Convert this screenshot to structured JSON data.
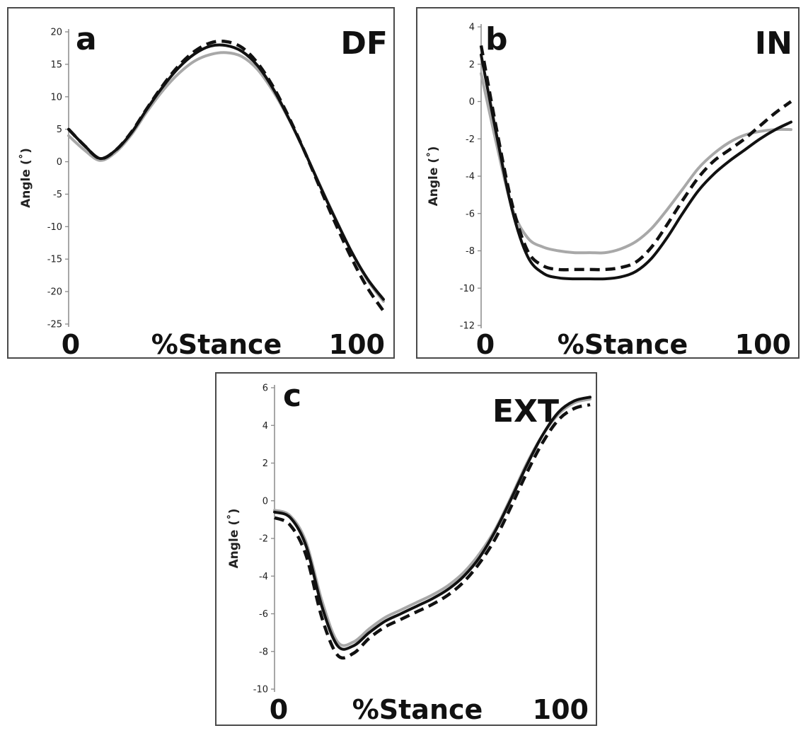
{
  "chart_data": [
    {
      "type": "line",
      "panel_letter": "a",
      "corner_label": "DF",
      "ylabel": "Angle (˚)",
      "xlabel": "%Stance",
      "x_start_label": "0",
      "x_end_label": "100",
      "ylim": [
        -25,
        20
      ],
      "yticks": [
        "20",
        "15",
        "10",
        "5",
        "0",
        "-5",
        "-10",
        "-15",
        "-20",
        "-25"
      ],
      "x": [
        0,
        5,
        10,
        15,
        20,
        25,
        30,
        35,
        40,
        45,
        50,
        55,
        60,
        65,
        70,
        75,
        80,
        85,
        90,
        95,
        100
      ],
      "series": [
        {
          "style": "solid-gray",
          "values": [
            4.0,
            1.8,
            0.2,
            1.5,
            4.2,
            7.8,
            11.0,
            13.6,
            15.5,
            16.5,
            16.8,
            16.2,
            14.2,
            10.8,
            6.5,
            1.5,
            -3.8,
            -9.0,
            -14.0,
            -18.3,
            -21.5
          ]
        },
        {
          "style": "dashed-black",
          "values": [
            5.0,
            2.5,
            0.5,
            1.8,
            4.6,
            8.3,
            11.8,
            14.8,
            17.0,
            18.3,
            18.5,
            17.6,
            15.2,
            11.5,
            6.8,
            1.5,
            -4.2,
            -9.8,
            -15.0,
            -19.5,
            -23.0
          ]
        },
        {
          "style": "solid-black",
          "values": [
            5.0,
            2.5,
            0.5,
            1.8,
            4.5,
            8.2,
            11.6,
            14.5,
            16.6,
            17.8,
            17.9,
            17.0,
            14.8,
            11.2,
            6.6,
            1.5,
            -3.9,
            -9.1,
            -14.0,
            -18.1,
            -21.2
          ]
        }
      ]
    },
    {
      "type": "line",
      "panel_letter": "b",
      "corner_label": "IN",
      "ylabel": "Angle (˚)",
      "xlabel": "%Stance",
      "x_start_label": "0",
      "x_end_label": "100",
      "ylim": [
        -12,
        4
      ],
      "yticks": [
        "4",
        "2",
        "0",
        "-2",
        "-4",
        "-6",
        "-8",
        "-10",
        "-12"
      ],
      "x": [
        0,
        5,
        10,
        15,
        20,
        25,
        30,
        35,
        40,
        45,
        50,
        55,
        60,
        65,
        70,
        75,
        80,
        85,
        90,
        95,
        100
      ],
      "series": [
        {
          "style": "solid-gray",
          "values": [
            1.5,
            -2.3,
            -5.7,
            -7.3,
            -7.8,
            -8.0,
            -8.1,
            -8.1,
            -8.1,
            -7.9,
            -7.5,
            -6.8,
            -5.8,
            -4.7,
            -3.6,
            -2.8,
            -2.2,
            -1.8,
            -1.6,
            -1.5,
            -1.5
          ]
        },
        {
          "style": "dashed-black",
          "values": [
            3.0,
            -1.5,
            -5.5,
            -8.0,
            -8.8,
            -9.0,
            -9.0,
            -9.0,
            -9.0,
            -8.9,
            -8.6,
            -7.8,
            -6.6,
            -5.3,
            -4.1,
            -3.2,
            -2.6,
            -2.0,
            -1.3,
            -0.6,
            0.0
          ]
        },
        {
          "style": "solid-black",
          "values": [
            2.5,
            -1.8,
            -5.8,
            -8.3,
            -9.2,
            -9.45,
            -9.5,
            -9.5,
            -9.5,
            -9.4,
            -9.1,
            -8.4,
            -7.3,
            -6.0,
            -4.8,
            -3.9,
            -3.2,
            -2.6,
            -2.0,
            -1.5,
            -1.1
          ]
        }
      ]
    },
    {
      "type": "line",
      "panel_letter": "c",
      "corner_label": "EXT",
      "ylabel": "Angle (˚)",
      "xlabel": "%Stance",
      "x_start_label": "0",
      "x_end_label": "100",
      "ylim": [
        -10,
        6
      ],
      "yticks": [
        "6",
        "4",
        "2",
        "0",
        "-2",
        "-4",
        "-6",
        "-8",
        "-10"
      ],
      "x": [
        0,
        5,
        10,
        15,
        20,
        25,
        30,
        35,
        40,
        45,
        50,
        55,
        60,
        65,
        70,
        75,
        80,
        85,
        90,
        95,
        100
      ],
      "series": [
        {
          "style": "solid-gray",
          "values": [
            -0.5,
            -0.8,
            -2.2,
            -5.3,
            -7.5,
            -7.5,
            -6.8,
            -6.2,
            -5.8,
            -5.4,
            -5.0,
            -4.5,
            -3.8,
            -2.8,
            -1.5,
            0.2,
            2.0,
            3.5,
            4.6,
            5.2,
            5.4
          ]
        },
        {
          "style": "dashed-black",
          "values": [
            -0.9,
            -1.3,
            -2.9,
            -6.2,
            -8.2,
            -8.1,
            -7.3,
            -6.7,
            -6.3,
            -5.9,
            -5.5,
            -5.0,
            -4.3,
            -3.3,
            -2.0,
            -0.3,
            1.5,
            3.1,
            4.3,
            4.9,
            5.1
          ]
        },
        {
          "style": "solid-black",
          "values": [
            -0.6,
            -0.9,
            -2.4,
            -5.6,
            -7.7,
            -7.7,
            -7.0,
            -6.4,
            -6.0,
            -5.6,
            -5.2,
            -4.7,
            -4.0,
            -3.0,
            -1.6,
            0.1,
            1.9,
            3.5,
            4.7,
            5.3,
            5.5
          ]
        }
      ]
    }
  ]
}
